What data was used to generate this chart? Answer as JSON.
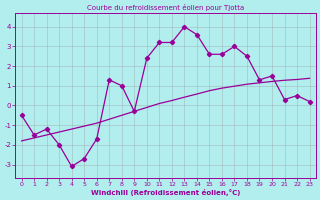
{
  "title": "Courbe du refroidissement éolien pour Tjotta",
  "xlabel": "Windchill (Refroidissement éolien,°C)",
  "xlim": [
    -0.5,
    23.5
  ],
  "ylim": [
    -3.7,
    4.7
  ],
  "yticks": [
    -3,
    -2,
    -1,
    0,
    1,
    2,
    3,
    4
  ],
  "xticks": [
    0,
    1,
    2,
    3,
    4,
    5,
    6,
    7,
    8,
    9,
    10,
    11,
    12,
    13,
    14,
    15,
    16,
    17,
    18,
    19,
    20,
    21,
    22,
    23
  ],
  "line_color": "#990099",
  "bg_color": "#b3eeee",
  "grid_color": "#999999",
  "line_jagged_x": [
    0,
    1,
    2,
    3,
    4,
    5,
    6,
    7,
    8,
    9,
    10,
    11,
    12,
    13,
    14,
    15,
    16,
    17,
    18,
    19,
    20,
    21,
    22,
    23
  ],
  "line_jagged_y": [
    -0.5,
    -1.5,
    -1.2,
    -2.0,
    -3.1,
    -2.7,
    -1.7,
    1.3,
    1.0,
    -0.3,
    2.4,
    3.2,
    3.2,
    4.0,
    3.6,
    2.6,
    2.6,
    3.0,
    2.5,
    1.3,
    1.5,
    0.3,
    0.5,
    0.2
  ],
  "line_smooth_x": [
    0,
    1,
    2,
    3,
    4,
    5,
    6,
    7,
    8,
    9,
    10,
    11,
    12,
    13,
    14,
    15,
    16,
    17,
    18,
    19,
    20,
    21,
    22,
    23
  ],
  "line_smooth_y": [
    -1.8,
    -1.65,
    -1.5,
    -1.35,
    -1.2,
    -1.05,
    -0.9,
    -0.7,
    -0.5,
    -0.3,
    -0.1,
    0.1,
    0.25,
    0.42,
    0.58,
    0.75,
    0.88,
    0.98,
    1.08,
    1.15,
    1.22,
    1.28,
    1.32,
    1.38
  ]
}
